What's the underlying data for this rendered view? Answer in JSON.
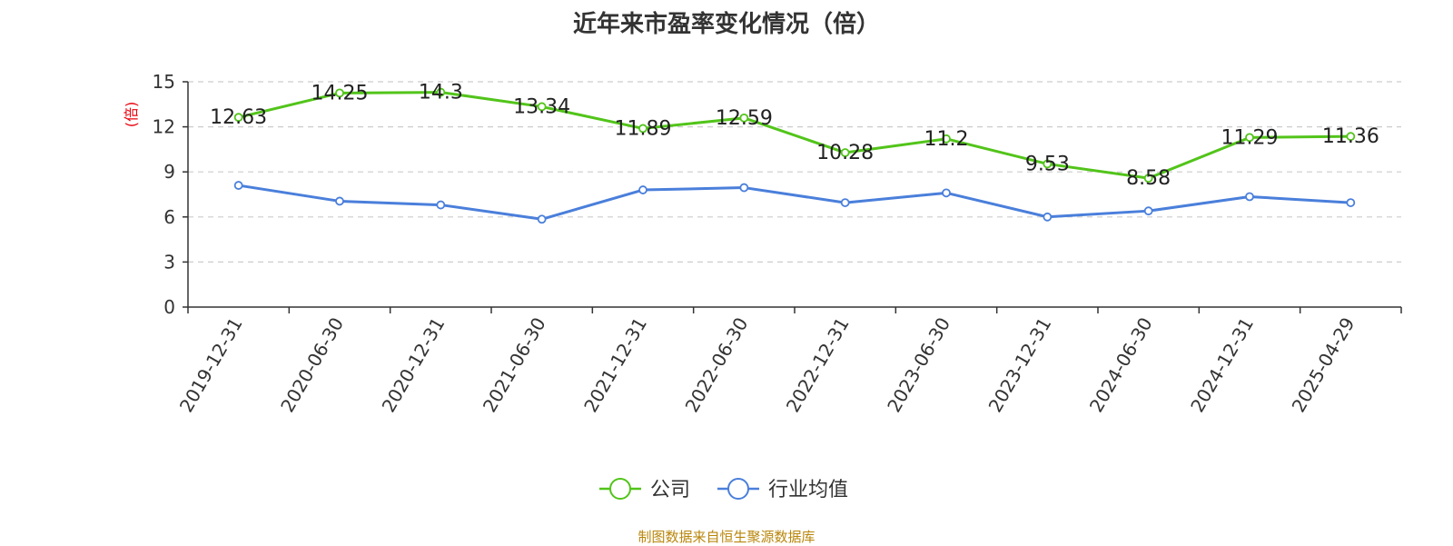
{
  "title": "近年来市盈率变化情况（倍）",
  "source": "制图数据来自恒生聚源数据库",
  "chart_data": {
    "type": "line",
    "title": "近年来市盈率变化情况（倍）",
    "ylabel": "(倍)",
    "xlabel": "",
    "x": [
      "2019-12-31",
      "2020-06-30",
      "2020-12-31",
      "2021-06-30",
      "2021-12-31",
      "2022-06-30",
      "2022-12-31",
      "2023-06-30",
      "2023-12-31",
      "2024-06-30",
      "2024-12-31",
      "2025-04-29"
    ],
    "ylim": [
      0,
      15
    ],
    "yticks": [
      0,
      3,
      6,
      9,
      12,
      15
    ],
    "grid": true,
    "legend_position": "bottom-center",
    "series": [
      {
        "name": "公司",
        "color": "#52c41a",
        "show_labels": true,
        "values": [
          12.63,
          14.25,
          14.3,
          13.34,
          11.89,
          12.59,
          10.28,
          11.2,
          9.53,
          8.58,
          11.29,
          11.36
        ]
      },
      {
        "name": "行业均值",
        "color": "#4a7fdb",
        "show_labels": false,
        "values": [
          8.1,
          7.05,
          6.8,
          5.85,
          7.8,
          7.95,
          6.95,
          7.6,
          6.0,
          6.4,
          7.35,
          6.95
        ]
      }
    ]
  }
}
